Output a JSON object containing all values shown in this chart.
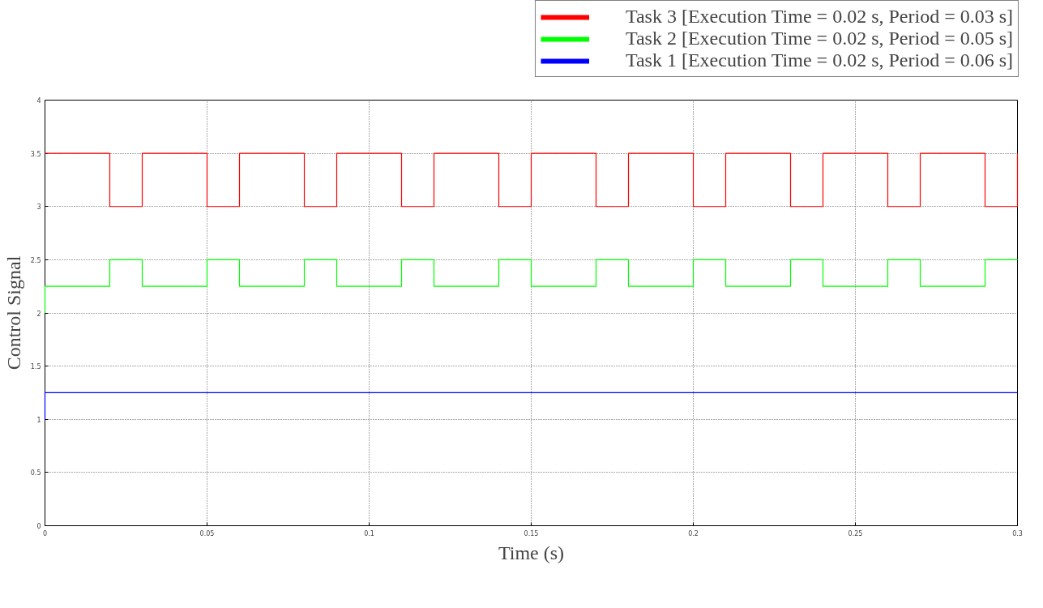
{
  "chart_data": {
    "type": "step",
    "xlabel": "Time (s)",
    "ylabel": "Control Signal",
    "series": [
      {
        "name": "Task 3 [Execution Time = 0.02 s, Period = 0.03 s]",
        "color": "#ff0000",
        "x": [
          0,
          0.02,
          0.03,
          0.05,
          0.06,
          0.08,
          0.09,
          0.11,
          0.12,
          0.14,
          0.15,
          0.17,
          0.18,
          0.2,
          0.21,
          0.23,
          0.24,
          0.26,
          0.27,
          0.29,
          0.3
        ],
        "values": [
          3.5,
          3,
          3.5,
          3,
          3.5,
          3,
          3.5,
          3,
          3.5,
          3,
          3.5,
          3,
          3.5,
          3,
          3.5,
          3,
          3.5,
          3,
          3.5,
          3,
          3.5
        ]
      },
      {
        "name": "Task 2 [Execution Time = 0.02 s, Period = 0.05 s]",
        "color": "#00ff00",
        "x": [
          0,
          0,
          0.02,
          0.03,
          0.05,
          0.06,
          0.08,
          0.09,
          0.11,
          0.12,
          0.14,
          0.15,
          0.17,
          0.18,
          0.2,
          0.21,
          0.23,
          0.24,
          0.26,
          0.27,
          0.29,
          0.3
        ],
        "values": [
          2,
          2.25,
          2.5,
          2.25,
          2.5,
          2.25,
          2.5,
          2.25,
          2.5,
          2.25,
          2.5,
          2.25,
          2.5,
          2.25,
          2.5,
          2.25,
          2.5,
          2.25,
          2.5,
          2.25,
          2.5,
          2.5
        ]
      },
      {
        "name": "Task 1 [Execution Time = 0.02 s, Period = 0.06 s]",
        "color": "#0000ff",
        "x": [
          0,
          0,
          0.3
        ],
        "values": [
          1,
          1.25,
          1.25
        ]
      }
    ],
    "xlim": [
      0,
      0.3
    ],
    "xticks": [
      0,
      0.05,
      0.1,
      0.15,
      0.2,
      0.25,
      0.3
    ],
    "ylim": [
      0,
      4
    ],
    "yticks": [
      0,
      0.5,
      1,
      1.5,
      2,
      2.5,
      3,
      3.5,
      4
    ],
    "grid": true,
    "legend": "top right",
    "line_style": "solid",
    "marker": "none"
  }
}
